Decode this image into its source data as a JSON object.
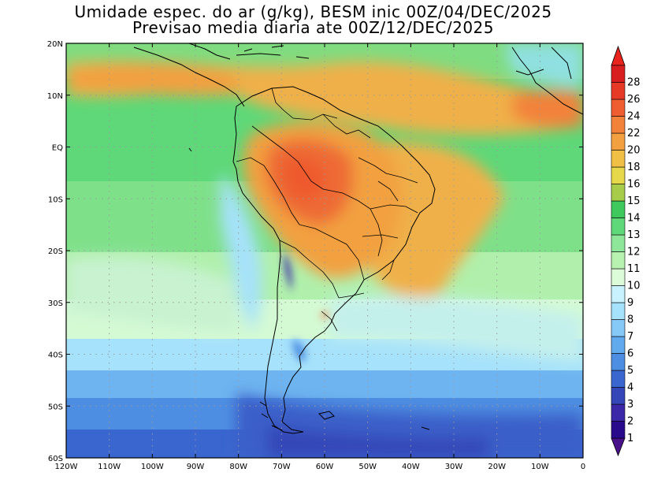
{
  "header": {
    "title_line1": "Umidade espec. do ar (g/kg), BESM inic 00Z/04/DEC/2025",
    "title_line2": "Previsao media diaria ate 00Z/12/DEC/2025"
  },
  "axes": {
    "lon_labels": [
      "120W",
      "110W",
      "100W",
      "90W",
      "80W",
      "70W",
      "60W",
      "50W",
      "40W",
      "30W",
      "20W",
      "10W",
      "0"
    ],
    "lat_labels": [
      "20N",
      "10N",
      "EQ",
      "10S",
      "20S",
      "30S",
      "40S",
      "50S",
      "60S"
    ]
  },
  "colorbar": {
    "levels": [
      "1",
      "2",
      "3",
      "4",
      "5",
      "6",
      "7",
      "8",
      "9",
      "10",
      "11",
      "12",
      "13",
      "14",
      "15",
      "16",
      "18",
      "20",
      "22",
      "24",
      "26",
      "28"
    ],
    "colors": [
      "#2a0a8c",
      "#3b28a8",
      "#3446b8",
      "#3a66cf",
      "#4e8ee2",
      "#62aaee",
      "#86c9f6",
      "#a6e2fb",
      "#c8f2ff",
      "#dcfbd8",
      "#b8f2b0",
      "#8ee69a",
      "#5ed878",
      "#3fc85c",
      "#a6cc4a",
      "#e6d84a",
      "#f0bf46",
      "#f2a040",
      "#f2823a",
      "#ee5e30",
      "#e63a26",
      "#d81e1e"
    ],
    "under_color": "#4a128a",
    "over_color": "#e8241c"
  }
}
